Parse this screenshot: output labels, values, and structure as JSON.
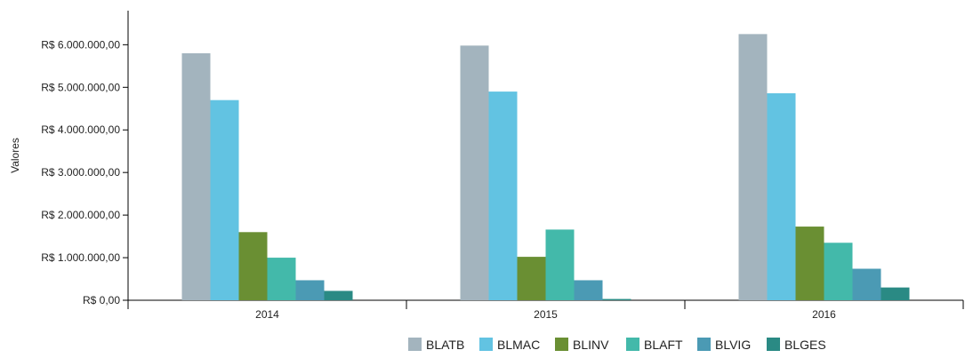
{
  "chart_data": {
    "type": "bar",
    "ylabel": "Valores",
    "xlabel": "",
    "ylim": [
      0,
      6800000
    ],
    "y_ticks": [
      0,
      1000000,
      2000000,
      3000000,
      4000000,
      5000000,
      6000000
    ],
    "y_tick_labels": [
      "R$ 0,00",
      "R$ 1.000.000,00",
      "R$ 2.000.000,00",
      "R$ 3.000.000,00",
      "R$ 4.000.000,00",
      "R$ 5.000.000,00",
      "R$ 6.000.000,00"
    ],
    "categories": [
      "2014",
      "2015",
      "2016"
    ],
    "series": [
      {
        "name": "BLATB",
        "color": "#a3b4be",
        "values": [
          5800000,
          5980000,
          6250000
        ]
      },
      {
        "name": "BLMAC",
        "color": "#62c3e2",
        "values": [
          4700000,
          4900000,
          4860000
        ]
      },
      {
        "name": "BLINV",
        "color": "#6a8f33",
        "values": [
          1600000,
          1020000,
          1730000
        ]
      },
      {
        "name": "BLAFT",
        "color": "#43b9aa",
        "values": [
          1000000,
          1660000,
          1350000
        ]
      },
      {
        "name": "BLVIG",
        "color": "#4b9ab4",
        "values": [
          470000,
          470000,
          740000
        ]
      },
      {
        "name": "BLGES",
        "color": "#2a8a84",
        "values": [
          220000,
          30000,
          300000
        ]
      }
    ],
    "grid": false,
    "legend_position": "bottom-right"
  }
}
